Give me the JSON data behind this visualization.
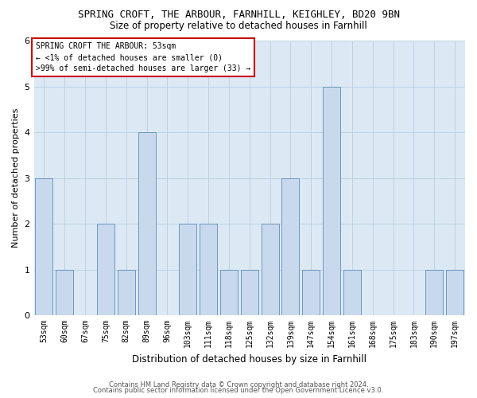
{
  "title": "SPRING CROFT, THE ARBOUR, FARNHILL, KEIGHLEY, BD20 9BN",
  "subtitle": "Size of property relative to detached houses in Farnhill",
  "xlabel": "Distribution of detached houses by size in Farnhill",
  "ylabel": "Number of detached properties",
  "categories": [
    "53sqm",
    "60sqm",
    "67sqm",
    "75sqm",
    "82sqm",
    "89sqm",
    "96sqm",
    "103sqm",
    "111sqm",
    "118sqm",
    "125sqm",
    "132sqm",
    "139sqm",
    "147sqm",
    "154sqm",
    "161sqm",
    "168sqm",
    "175sqm",
    "183sqm",
    "190sqm",
    "197sqm"
  ],
  "values": [
    3,
    1,
    0,
    2,
    1,
    4,
    0,
    2,
    2,
    1,
    1,
    2,
    3,
    1,
    5,
    1,
    0,
    0,
    0,
    1,
    1
  ],
  "bar_color": "#c9d9ed",
  "bar_edge_color": "#5b8db8",
  "annotation_text": "SPRING CROFT THE ARBOUR: 53sqm\n← <1% of detached houses are smaller (0)\n>99% of semi-detached houses are larger (33) →",
  "ylim": [
    0,
    6
  ],
  "yticks": [
    0,
    1,
    2,
    3,
    4,
    5,
    6
  ],
  "footer_line1": "Contains HM Land Registry data © Crown copyright and database right 2024.",
  "footer_line2": "Contains public sector information licensed under the Open Government Licence v3.0.",
  "bg_color": "#ffffff",
  "plot_bg_color": "#dce9f5",
  "grid_color": "#b8cfe0",
  "title_fontsize": 9,
  "subtitle_fontsize": 8.5,
  "tick_fontsize": 7,
  "ylabel_fontsize": 8,
  "xlabel_fontsize": 8.5,
  "annotation_fontsize": 7,
  "footer_fontsize": 6
}
